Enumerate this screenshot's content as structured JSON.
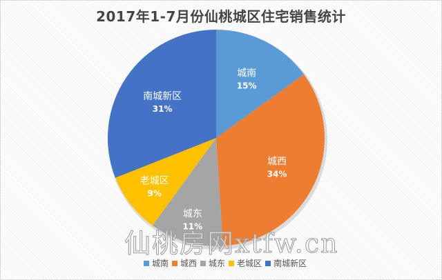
{
  "chart_data": {
    "type": "pie",
    "title": "2017年1-7月份仙桃城区住宅销售统计",
    "categories": [
      "城南",
      "城西",
      "城东",
      "老城区",
      "南城新区"
    ],
    "values": [
      15,
      34,
      11,
      9,
      31
    ],
    "value_labels": [
      "15%",
      "34%",
      "11%",
      "9%",
      "31%"
    ],
    "colors": [
      "#5b9bd5",
      "#ed7d31",
      "#a5a5a5",
      "#ffc000",
      "#4472c4"
    ],
    "legend_position": "bottom",
    "start_angle_deg": 0,
    "direction": "clockwise"
  },
  "watermark": "仙桃房网xtfw.cn"
}
